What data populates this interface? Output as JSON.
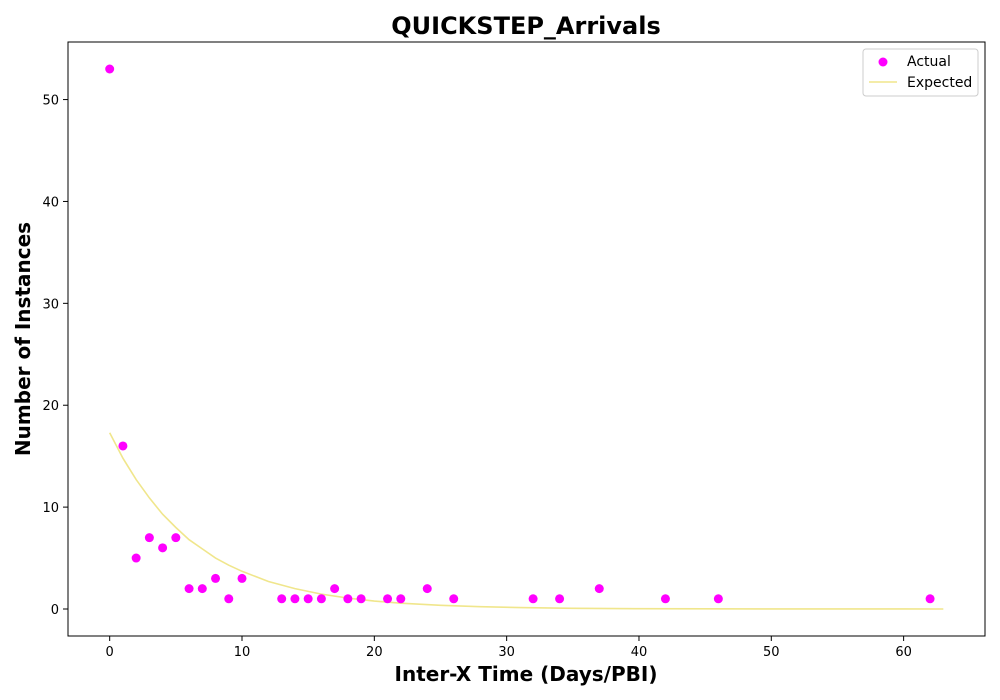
{
  "chart_data": {
    "type": "scatter",
    "title": "QUICKSTEP_Arrivals",
    "xlabel": "Inter-X Time (Days/PBI)",
    "ylabel": "Number of Instances",
    "xlim": [
      -3.15,
      66.15
    ],
    "ylim": [
      -2.65,
      55.65
    ],
    "xticks": [
      0,
      10,
      20,
      30,
      40,
      50,
      60
    ],
    "yticks": [
      0,
      10,
      20,
      30,
      40,
      50
    ],
    "legend_position": "top-right",
    "grid": false,
    "series": [
      {
        "name": "Actual",
        "kind": "scatter",
        "color": "#ff00ff",
        "points": [
          [
            0,
            53
          ],
          [
            1,
            16
          ],
          [
            2,
            5
          ],
          [
            3,
            7
          ],
          [
            4,
            6
          ],
          [
            5,
            7
          ],
          [
            6,
            2
          ],
          [
            7,
            2
          ],
          [
            8,
            3
          ],
          [
            9,
            1
          ],
          [
            10,
            3
          ],
          [
            13,
            1
          ],
          [
            14,
            1
          ],
          [
            15,
            1
          ],
          [
            16,
            1
          ],
          [
            17,
            2
          ],
          [
            18,
            1
          ],
          [
            19,
            1
          ],
          [
            21,
            1
          ],
          [
            22,
            1
          ],
          [
            24,
            2
          ],
          [
            26,
            1
          ],
          [
            32,
            1
          ],
          [
            34,
            1
          ],
          [
            37,
            2
          ],
          [
            42,
            1
          ],
          [
            46,
            1
          ],
          [
            62,
            1
          ]
        ]
      },
      {
        "name": "Expected",
        "kind": "line",
        "color": "#f0e68c",
        "points": [
          [
            0,
            17.3
          ],
          [
            1,
            14.8
          ],
          [
            2,
            12.7
          ],
          [
            3,
            10.9
          ],
          [
            4,
            9.3
          ],
          [
            5,
            8.0
          ],
          [
            6,
            6.8
          ],
          [
            7,
            5.9
          ],
          [
            8,
            5.0
          ],
          [
            9,
            4.3
          ],
          [
            10,
            3.7
          ],
          [
            12,
            2.7
          ],
          [
            14,
            2.0
          ],
          [
            16,
            1.46
          ],
          [
            18,
            1.07
          ],
          [
            20,
            0.78
          ],
          [
            22,
            0.57
          ],
          [
            25,
            0.36
          ],
          [
            28,
            0.23
          ],
          [
            31,
            0.14
          ],
          [
            35,
            0.07
          ],
          [
            40,
            0.03
          ],
          [
            45,
            0.015
          ],
          [
            50,
            0.007
          ],
          [
            55,
            0.003
          ],
          [
            60,
            0.0015
          ],
          [
            63,
            0.001
          ]
        ]
      }
    ]
  }
}
